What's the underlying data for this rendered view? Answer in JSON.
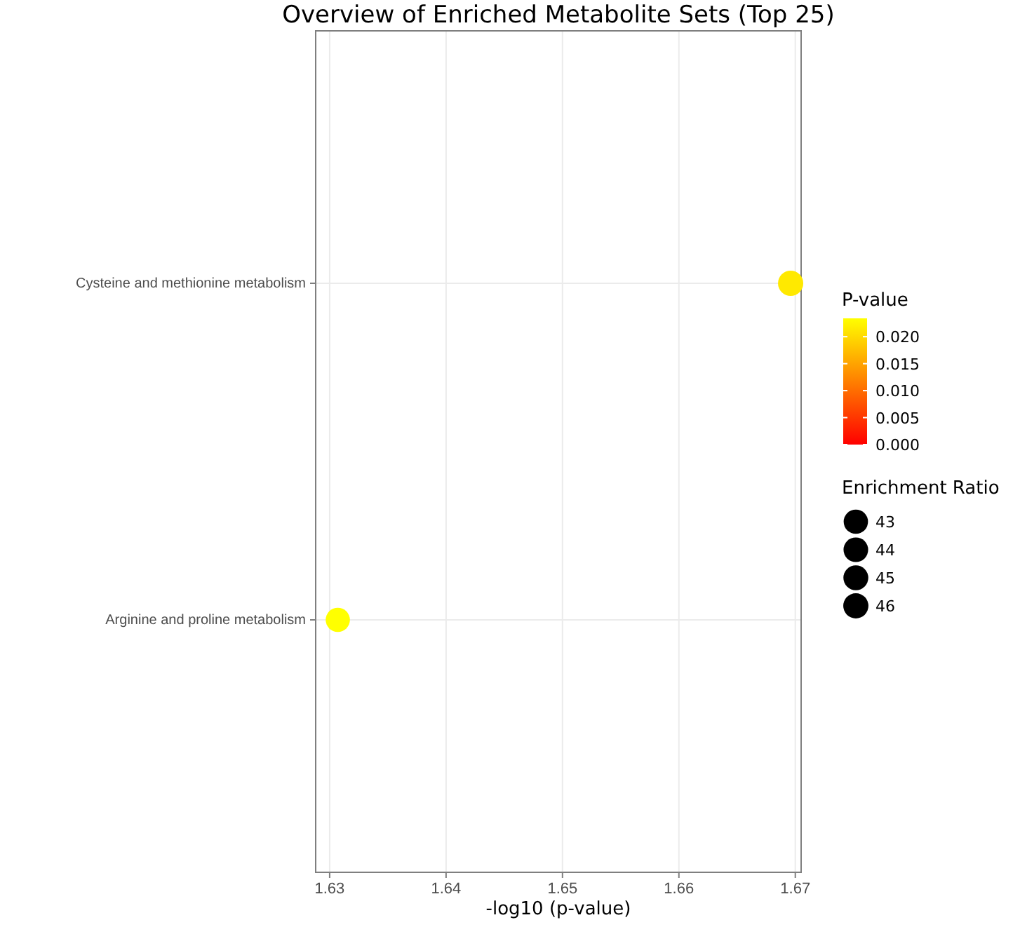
{
  "chart_data": {
    "type": "bubble",
    "title": "Overview of Enriched Metabolite Sets (Top 25)",
    "xlabel": "-log10 (p-value)",
    "clabel": "P-value",
    "legend_title": "Enrichment Ratio",
    "categories": [
      "Cysteine and methionine metabolism",
      "Arginine and proline metabolism"
    ],
    "orientation": "horizontal",
    "values": [
      1.6696,
      1.6307
    ],
    "sizes": [
      46.3,
      42.7
    ],
    "cvalues": [
      0.0214,
      0.0234
    ],
    "size_legend": [
      43,
      44,
      45,
      46
    ],
    "xlim": [
      1.6288,
      1.6705
    ],
    "xticks": [
      1.63,
      1.64,
      1.65,
      1.66,
      1.67
    ],
    "clim": [
      0,
      0.0234
    ],
    "cticks": [
      {
        "value": 0,
        "label": "0.000"
      },
      {
        "value": 0.005,
        "label": "0.005"
      },
      {
        "value": 0.01,
        "label": "0.010"
      },
      {
        "value": 0.015,
        "label": "0.015"
      },
      {
        "value": 0.02,
        "label": "0.020"
      }
    ],
    "grid": true
  }
}
